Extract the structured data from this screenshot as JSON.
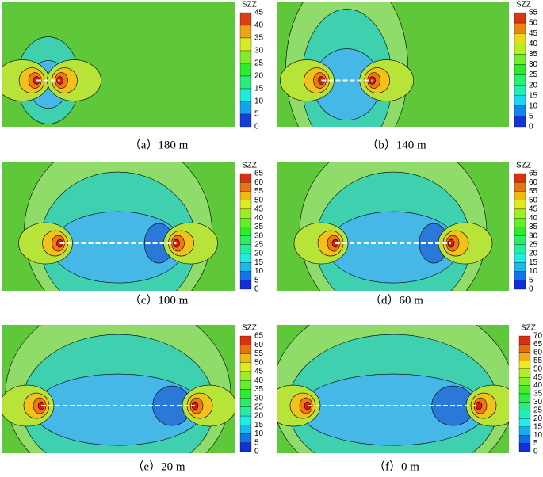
{
  "panels": [
    {
      "caption": "（a）180 m",
      "colorbar_label": "SZZ",
      "colorbar_ticks": [
        "45",
        "40",
        "35",
        "30",
        "25",
        "20",
        "15",
        "10",
        "5",
        "0"
      ]
    },
    {
      "caption": "（b）140 m",
      "colorbar_label": "SZZ",
      "colorbar_ticks": [
        "55",
        "50",
        "45",
        "40",
        "35",
        "30",
        "25",
        "20",
        "15",
        "10",
        "5",
        "0"
      ]
    },
    {
      "caption": "（c）100 m",
      "colorbar_label": "SZZ",
      "colorbar_ticks": [
        "65",
        "60",
        "55",
        "50",
        "45",
        "40",
        "35",
        "30",
        "25",
        "20",
        "15",
        "10",
        "5",
        "0"
      ]
    },
    {
      "caption": "（d）60 m",
      "colorbar_label": "SZZ",
      "colorbar_ticks": [
        "65",
        "60",
        "55",
        "50",
        "45",
        "40",
        "35",
        "30",
        "25",
        "20",
        "15",
        "10",
        "5",
        "0"
      ]
    },
    {
      "caption": "（e）20 m",
      "colorbar_label": "SZZ",
      "colorbar_ticks": [
        "65",
        "60",
        "55",
        "50",
        "45",
        "40",
        "35",
        "30",
        "25",
        "20",
        "15",
        "10",
        "5",
        "0"
      ]
    },
    {
      "caption": "（f）0 m",
      "colorbar_label": "SZZ",
      "colorbar_ticks": [
        "70",
        "65",
        "60",
        "55",
        "50",
        "45",
        "40",
        "35",
        "30",
        "25",
        "20",
        "15",
        "10",
        "5",
        "0"
      ]
    }
  ]
}
